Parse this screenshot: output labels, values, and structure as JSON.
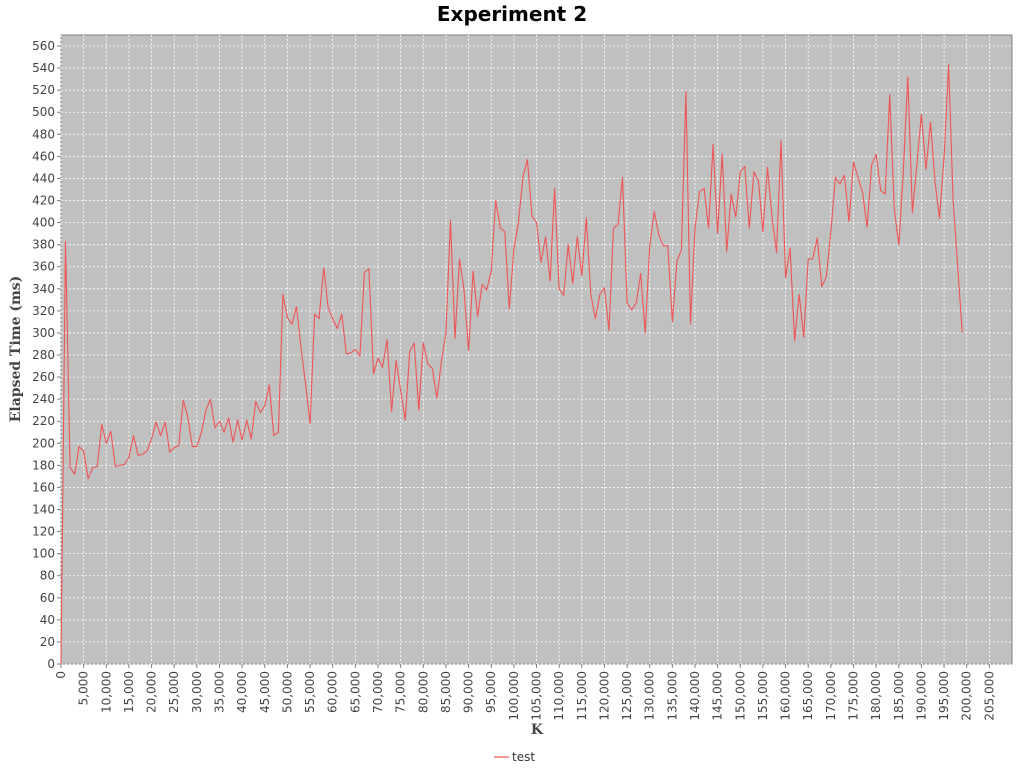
{
  "chart_data": {
    "type": "line",
    "title": "Experiment 2",
    "xlabel": "K",
    "ylabel": "Elapsed Time (ms)",
    "xlim": [
      0,
      210000
    ],
    "ylim": [
      0,
      570
    ],
    "x_ticks": [
      "0",
      "5,000",
      "10,000",
      "15,000",
      "20,000",
      "25,000",
      "30,000",
      "35,000",
      "40,000",
      "45,000",
      "50,000",
      "55,000",
      "60,000",
      "65,000",
      "70,000",
      "75,000",
      "80,000",
      "85,000",
      "90,000",
      "95,000",
      "100,000",
      "105,000",
      "110,000",
      "115,000",
      "120,000",
      "125,000",
      "130,000",
      "135,000",
      "140,000",
      "145,000",
      "150,000",
      "155,000",
      "160,000",
      "165,000",
      "170,000",
      "175,000",
      "180,000",
      "185,000",
      "190,000",
      "195,000",
      "200,000",
      "205,000"
    ],
    "y_ticks": [
      "0",
      "20",
      "40",
      "60",
      "80",
      "100",
      "120",
      "140",
      "160",
      "180",
      "200",
      "220",
      "240",
      "260",
      "280",
      "300",
      "320",
      "340",
      "360",
      "380",
      "400",
      "420",
      "440",
      "460",
      "480",
      "500",
      "520",
      "540",
      "560"
    ],
    "grid": true,
    "legend_position": "bottom",
    "series": [
      {
        "name": "test",
        "color": "#ee5555",
        "points": [
          [
            0,
            0
          ],
          [
            1000,
            383
          ],
          [
            2000,
            178
          ],
          [
            3000,
            172
          ],
          [
            4000,
            197
          ],
          [
            5000,
            193
          ],
          [
            6000,
            168
          ],
          [
            7000,
            178
          ],
          [
            8000,
            179
          ],
          [
            9000,
            217
          ],
          [
            10000,
            200
          ],
          [
            11000,
            211
          ],
          [
            12000,
            179
          ],
          [
            13000,
            180
          ],
          [
            14000,
            181
          ],
          [
            15000,
            187
          ],
          [
            16000,
            207
          ],
          [
            17000,
            189
          ],
          [
            18000,
            190
          ],
          [
            19000,
            193
          ],
          [
            20000,
            204
          ],
          [
            21000,
            219
          ],
          [
            22000,
            207
          ],
          [
            23000,
            219
          ],
          [
            24000,
            192
          ],
          [
            25000,
            196
          ],
          [
            26000,
            198
          ],
          [
            27000,
            239
          ],
          [
            28000,
            224
          ],
          [
            29000,
            197
          ],
          [
            30000,
            197
          ],
          [
            31000,
            210
          ],
          [
            32000,
            230
          ],
          [
            33000,
            240
          ],
          [
            34000,
            214
          ],
          [
            35000,
            220
          ],
          [
            36000,
            210
          ],
          [
            37000,
            223
          ],
          [
            38000,
            201
          ],
          [
            39000,
            221
          ],
          [
            40000,
            203
          ],
          [
            41000,
            221
          ],
          [
            42000,
            204
          ],
          [
            43000,
            238
          ],
          [
            44000,
            228
          ],
          [
            45000,
            234
          ],
          [
            46000,
            253
          ],
          [
            47000,
            207
          ],
          [
            48000,
            210
          ],
          [
            49000,
            335
          ],
          [
            50000,
            314
          ],
          [
            51000,
            308
          ],
          [
            52000,
            324
          ],
          [
            53000,
            287
          ],
          [
            54000,
            254
          ],
          [
            55000,
            218
          ],
          [
            56000,
            317
          ],
          [
            57000,
            313
          ],
          [
            58000,
            359
          ],
          [
            59000,
            323
          ],
          [
            60000,
            313
          ],
          [
            61000,
            304
          ],
          [
            62000,
            317
          ],
          [
            63000,
            281
          ],
          [
            64000,
            282
          ],
          [
            65000,
            285
          ],
          [
            66000,
            279
          ],
          [
            67000,
            355
          ],
          [
            68000,
            358
          ],
          [
            69000,
            263
          ],
          [
            70000,
            277
          ],
          [
            71000,
            269
          ],
          [
            72000,
            294
          ],
          [
            73000,
            229
          ],
          [
            74000,
            275
          ],
          [
            75000,
            248
          ],
          [
            76000,
            221
          ],
          [
            77000,
            283
          ],
          [
            78000,
            291
          ],
          [
            79000,
            230
          ],
          [
            80000,
            291
          ],
          [
            81000,
            272
          ],
          [
            82000,
            268
          ],
          [
            83000,
            241
          ],
          [
            84000,
            274
          ],
          [
            85000,
            300
          ],
          [
            86000,
            402
          ],
          [
            87000,
            295
          ],
          [
            88000,
            367
          ],
          [
            89000,
            339
          ],
          [
            90000,
            284
          ],
          [
            91000,
            356
          ],
          [
            92000,
            315
          ],
          [
            93000,
            344
          ],
          [
            94000,
            339
          ],
          [
            95000,
            356
          ],
          [
            96000,
            420
          ],
          [
            97000,
            395
          ],
          [
            98000,
            392
          ],
          [
            99000,
            322
          ],
          [
            100000,
            376
          ],
          [
            101000,
            400
          ],
          [
            102000,
            441
          ],
          [
            103000,
            457
          ],
          [
            104000,
            406
          ],
          [
            105000,
            400
          ],
          [
            106000,
            364
          ],
          [
            107000,
            387
          ],
          [
            108000,
            347
          ],
          [
            109000,
            431
          ],
          [
            110000,
            340
          ],
          [
            111000,
            334
          ],
          [
            112000,
            380
          ],
          [
            113000,
            345
          ],
          [
            114000,
            387
          ],
          [
            115000,
            352
          ],
          [
            116000,
            404
          ],
          [
            117000,
            335
          ],
          [
            118000,
            313
          ],
          [
            119000,
            335
          ],
          [
            120000,
            341
          ],
          [
            121000,
            302
          ],
          [
            122000,
            395
          ],
          [
            123000,
            398
          ],
          [
            124000,
            441
          ],
          [
            125000,
            327
          ],
          [
            126000,
            321
          ],
          [
            127000,
            327
          ],
          [
            128000,
            354
          ],
          [
            129000,
            300
          ],
          [
            130000,
            378
          ],
          [
            131000,
            410
          ],
          [
            132000,
            389
          ],
          [
            133000,
            379
          ],
          [
            134000,
            379
          ],
          [
            135000,
            310
          ],
          [
            136000,
            365
          ],
          [
            137000,
            375
          ],
          [
            138000,
            519
          ],
          [
            139000,
            308
          ],
          [
            140000,
            395
          ],
          [
            141000,
            428
          ],
          [
            142000,
            431
          ],
          [
            143000,
            395
          ],
          [
            144000,
            471
          ],
          [
            145000,
            390
          ],
          [
            146000,
            462
          ],
          [
            147000,
            374
          ],
          [
            148000,
            426
          ],
          [
            149000,
            405
          ],
          [
            150000,
            446
          ],
          [
            151000,
            451
          ],
          [
            152000,
            395
          ],
          [
            153000,
            446
          ],
          [
            154000,
            438
          ],
          [
            155000,
            392
          ],
          [
            156000,
            450
          ],
          [
            157000,
            405
          ],
          [
            158000,
            373
          ],
          [
            159000,
            474
          ],
          [
            160000,
            350
          ],
          [
            161000,
            377
          ],
          [
            162000,
            293
          ],
          [
            163000,
            335
          ],
          [
            164000,
            296
          ],
          [
            165000,
            367
          ],
          [
            166000,
            367
          ],
          [
            167000,
            386
          ],
          [
            168000,
            342
          ],
          [
            169000,
            351
          ],
          [
            170000,
            392
          ],
          [
            171000,
            441
          ],
          [
            172000,
            435
          ],
          [
            173000,
            443
          ],
          [
            174000,
            401
          ],
          [
            175000,
            455
          ],
          [
            176000,
            441
          ],
          [
            177000,
            427
          ],
          [
            178000,
            396
          ],
          [
            179000,
            452
          ],
          [
            180000,
            462
          ],
          [
            181000,
            429
          ],
          [
            182000,
            426
          ],
          [
            183000,
            516
          ],
          [
            184000,
            412
          ],
          [
            185000,
            380
          ],
          [
            186000,
            446
          ],
          [
            187000,
            532
          ],
          [
            188000,
            409
          ],
          [
            189000,
            453
          ],
          [
            190000,
            498
          ],
          [
            191000,
            448
          ],
          [
            192000,
            491
          ],
          [
            193000,
            437
          ],
          [
            194000,
            404
          ],
          [
            195000,
            460
          ],
          [
            196000,
            543
          ],
          [
            197000,
            420
          ],
          [
            198000,
            360
          ],
          [
            199000,
            300
          ]
        ]
      }
    ]
  }
}
